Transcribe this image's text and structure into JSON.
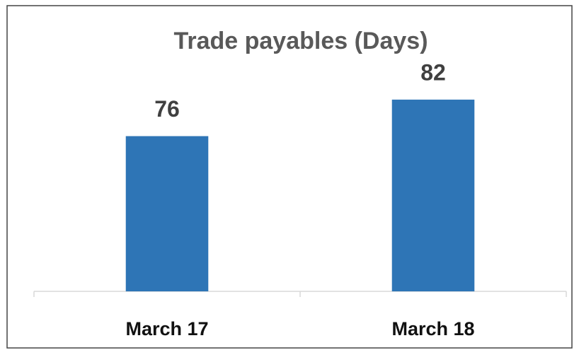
{
  "chart_data": {
    "type": "bar",
    "title": "Trade payables (Days)",
    "categories": [
      "March 17",
      "March 18"
    ],
    "values": [
      76,
      82
    ],
    "color": "#2e75b6",
    "ylim": [
      50.5,
      90
    ]
  }
}
